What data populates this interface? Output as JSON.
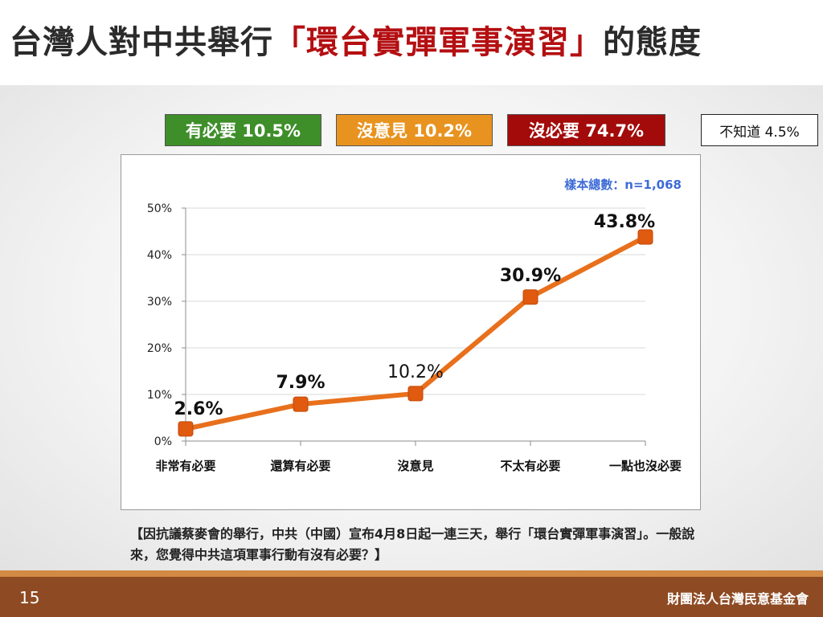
{
  "slide": {
    "title_prefix": "台灣人對中共舉行",
    "title_highlight": "「環台實彈軍事演習」",
    "title_suffix": "的態度",
    "page_number": "15",
    "organization": "財團法人台灣民意基金會",
    "question": "【因抗議蔡麥會的舉行，中共（中國）宣布4月8日起一連三天，舉行「環台實彈軍事演習」。一般說來，您覺得中共這項軍事行動有沒有必要？】",
    "colors": {
      "title_highlight": "#b40f12",
      "footer": "#8e4a22",
      "footer_stripe": "#d28a44"
    }
  },
  "summary": [
    {
      "label": "有必要 10.5%",
      "bg": "#3e8e2a",
      "fg": "#ffffff",
      "border": "#555555"
    },
    {
      "label": "沒意見 10.2%",
      "bg": "#e8931f",
      "fg": "#ffffff",
      "border": "#555555"
    },
    {
      "label": "沒必要 74.7%",
      "bg": "#a30a0a",
      "fg": "#ffffff",
      "border": "#555555"
    },
    {
      "label": "不知道 4.5%",
      "bg": "#ffffff",
      "fg": "#111111",
      "border": "#222222"
    }
  ],
  "chart_data": {
    "type": "line",
    "categories": [
      "非常有必要",
      "還算有必要",
      "沒意見",
      "不太有必要",
      "一點也沒必要"
    ],
    "values": [
      2.6,
      7.9,
      10.2,
      30.9,
      43.8
    ],
    "data_labels": [
      "2.6%",
      "7.9%",
      "10.2%",
      "30.9%",
      "43.8%"
    ],
    "y_ticks": [
      "0%",
      "10%",
      "20%",
      "30%",
      "40%",
      "50%"
    ],
    "ylim": [
      0,
      50
    ],
    "sample_note": "樣本總數：n=1,068",
    "title": "",
    "xlabel": "",
    "ylabel": "",
    "grid": true,
    "legend": "none",
    "colors": {
      "line": "#e8701c",
      "marker": "#e05a10",
      "grid": "#d9d9d9",
      "axis": "#8c8c8c",
      "note": "#3d6bd6"
    }
  }
}
